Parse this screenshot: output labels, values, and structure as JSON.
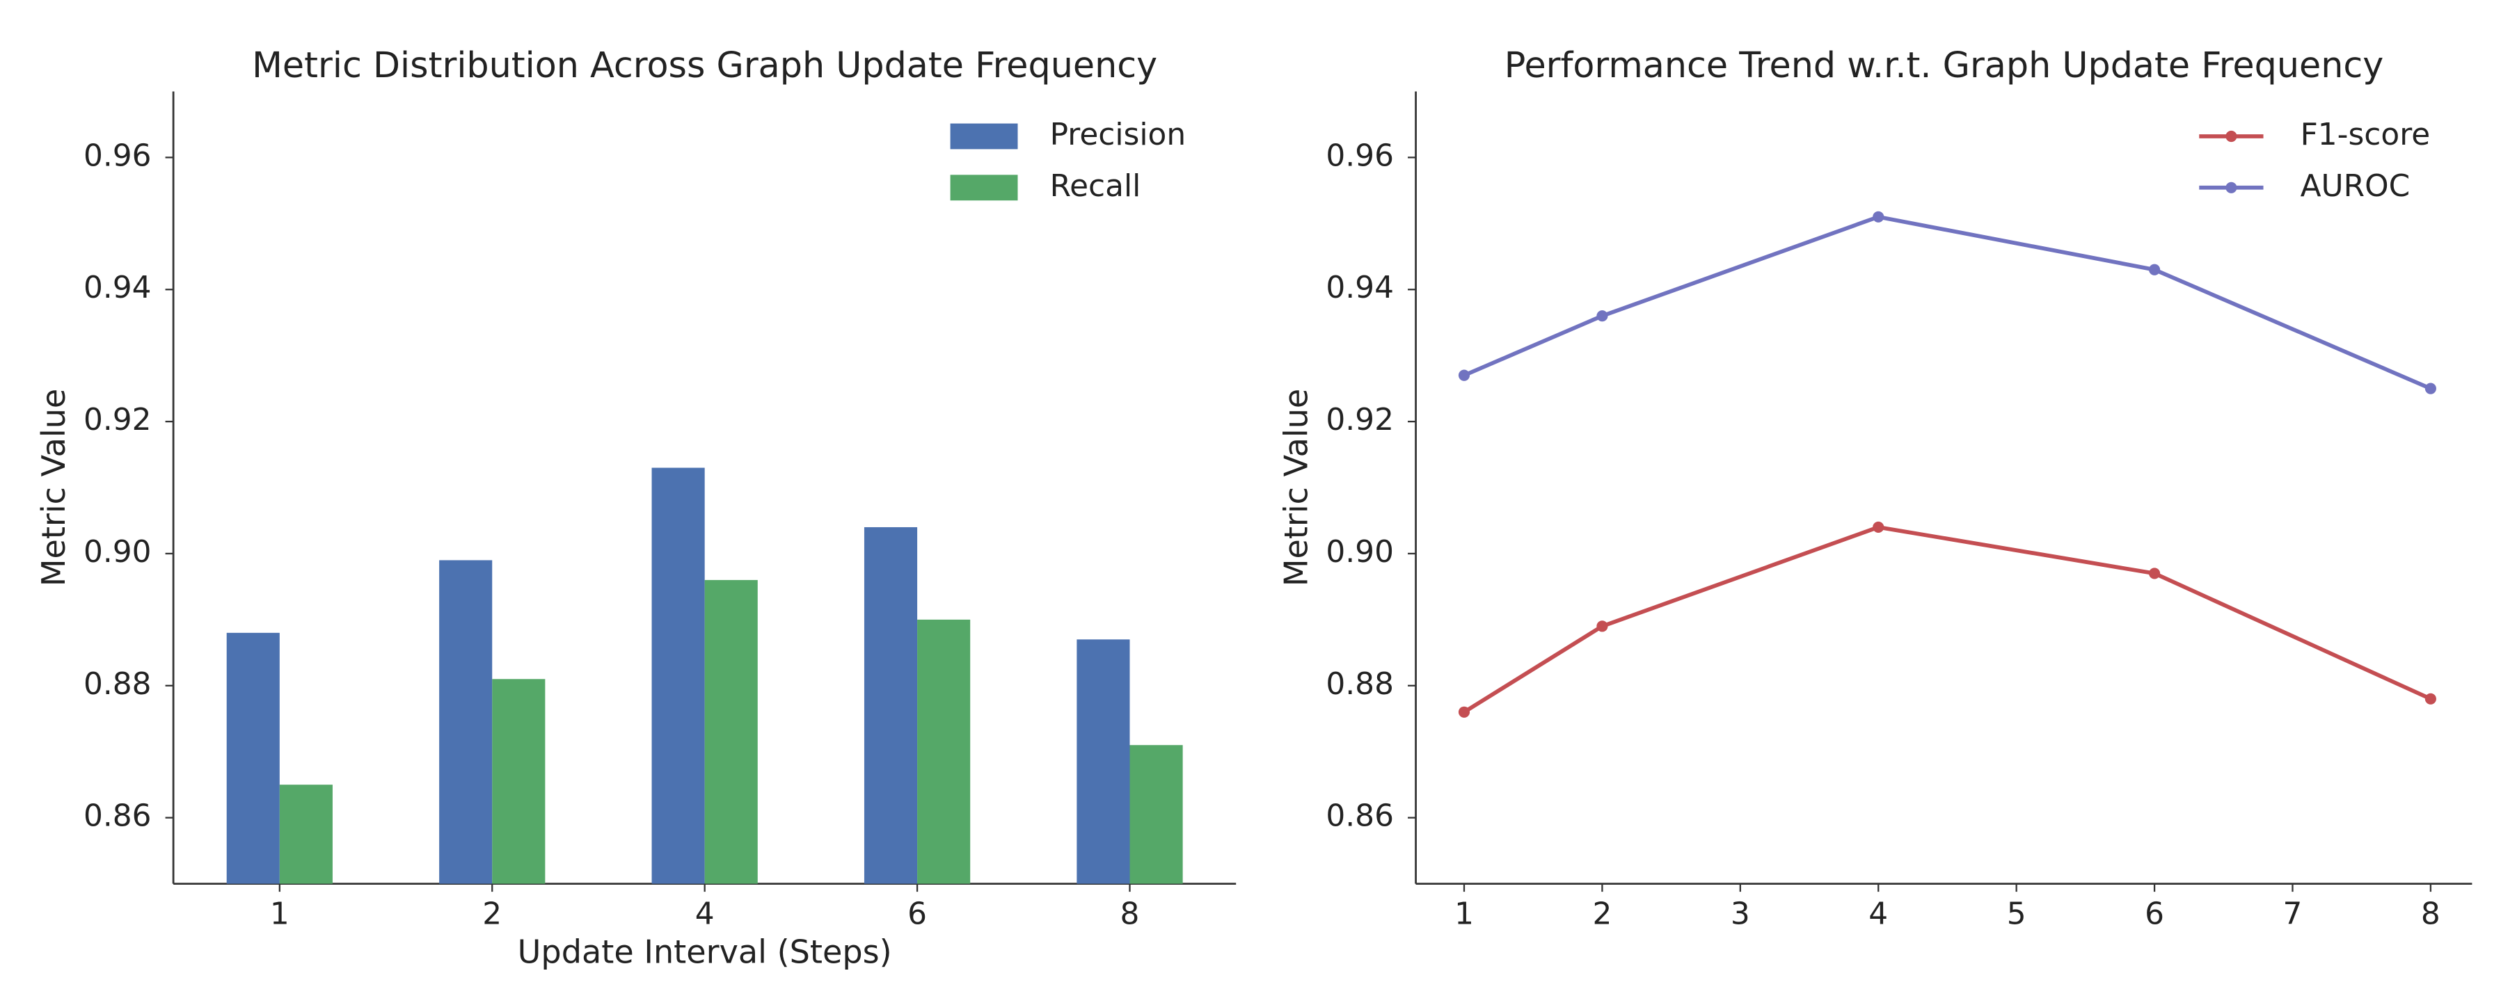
{
  "chart_data": [
    {
      "type": "bar",
      "title": "Metric Distribution Across Graph Update Frequency",
      "xlabel": "Update Interval (Steps)",
      "ylabel": "Metric Value",
      "categories": [
        "1",
        "2",
        "4",
        "6",
        "8"
      ],
      "series": [
        {
          "name": "Precision",
          "color": "#4c72b0",
          "values": [
            0.888,
            0.899,
            0.913,
            0.904,
            0.887
          ]
        },
        {
          "name": "Recall",
          "color": "#55a868",
          "values": [
            0.865,
            0.881,
            0.896,
            0.89,
            0.871
          ]
        }
      ],
      "ylim": [
        0.85,
        0.97
      ],
      "yticks": [
        0.86,
        0.88,
        {
          "value": 0.9,
          "label": "0.90"
        },
        0.92,
        0.94,
        0.96
      ],
      "legend": "upper right"
    },
    {
      "type": "line",
      "title": "Performance Trend w.r.t. Graph Update Frequency",
      "ylabel": "Metric Value",
      "x": [
        1,
        2,
        4,
        6,
        8
      ],
      "series": [
        {
          "name": "F1-score",
          "color": "#c44e52",
          "values": [
            0.876,
            0.889,
            0.904,
            0.897,
            0.878
          ]
        },
        {
          "name": "AUROC",
          "color": "#7173c0",
          "values": [
            0.927,
            0.936,
            0.951,
            0.943,
            0.925
          ]
        }
      ],
      "xlim": [
        0.65,
        8.3
      ],
      "xticks": [
        1,
        2,
        3,
        4,
        5,
        6,
        7,
        8
      ],
      "ylim": [
        0.85,
        0.97
      ],
      "yticks": [
        0.86,
        0.88,
        {
          "value": 0.9,
          "label": "0.90"
        },
        0.92,
        0.94,
        0.96
      ],
      "legend": "upper right"
    }
  ]
}
